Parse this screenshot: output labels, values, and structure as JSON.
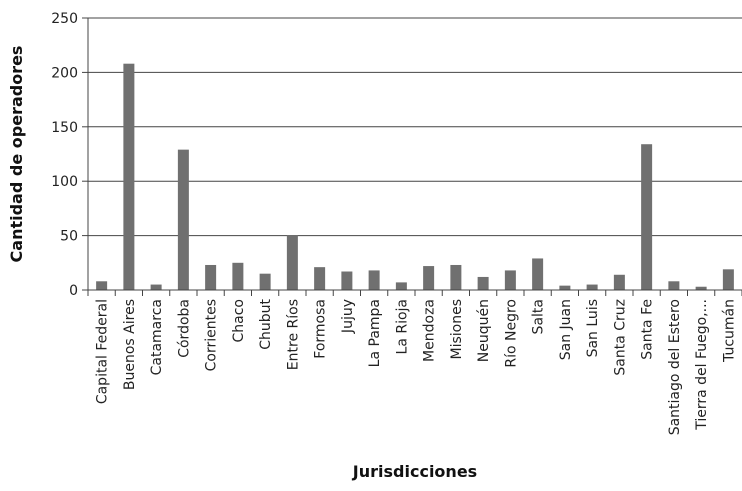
{
  "chart_data": {
    "type": "bar",
    "title": "",
    "xlabel": "Jurisdicciones",
    "ylabel": "Cantidad de operadores",
    "ylim": [
      0,
      250
    ],
    "yticks": [
      0,
      50,
      100,
      150,
      200,
      250
    ],
    "grid": true,
    "legend": "none",
    "bar_color": "#707070",
    "categories": [
      "Capital Federal",
      "Buenos Aires",
      "Catamarca",
      "Córdoba",
      "Corrientes",
      "Chaco",
      "Chubut",
      "Entre Ríos",
      "Formosa",
      "Jujuy",
      "La Pampa",
      "La Rioja",
      "Mendoza",
      "Misiones",
      "Neuquén",
      "Río Negro",
      "Salta",
      "San Juan",
      "San Luis",
      "Santa Cruz",
      "Santa Fe",
      "Santiago del Estero",
      "Tierra del Fuego,...",
      "Tucumán"
    ],
    "values": [
      8,
      208,
      5,
      129,
      23,
      25,
      15,
      50,
      21,
      17,
      18,
      7,
      22,
      23,
      12,
      18,
      29,
      4,
      5,
      14,
      134,
      8,
      3,
      19
    ]
  }
}
